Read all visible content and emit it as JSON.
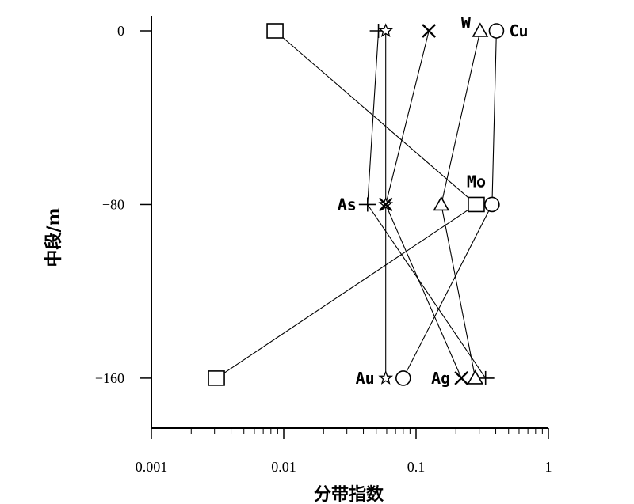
{
  "chart_data": {
    "type": "line",
    "xlabel": "分带指数",
    "ylabel": "中段/m",
    "x_scale": "log",
    "xlim": [
      0.001,
      1
    ],
    "ylim": [
      -183,
      0
    ],
    "x_ticks": [
      {
        "value": 0.001,
        "label": "0.001"
      },
      {
        "value": 0.01,
        "label": "0.01"
      },
      {
        "value": 0.1,
        "label": "0.1"
      },
      {
        "value": 1,
        "label": "1"
      }
    ],
    "y_ticks": [
      {
        "value": 0,
        "label": "0"
      },
      {
        "value": -80,
        "label": "−80"
      },
      {
        "value": -160,
        "label": "−160"
      }
    ],
    "series": [
      {
        "name": "Mo",
        "marker": "square",
        "points": [
          {
            "x": 0.0086,
            "y": 0
          },
          {
            "x": 0.285,
            "y": -80
          },
          {
            "x": 0.0031,
            "y": -160
          }
        ]
      },
      {
        "name": "As",
        "marker": "plus",
        "points": [
          {
            "x": 0.052,
            "y": 0
          },
          {
            "x": 0.043,
            "y": -80
          },
          {
            "x": 0.335,
            "y": -160
          }
        ]
      },
      {
        "name": "Au",
        "marker": "star",
        "points": [
          {
            "x": 0.059,
            "y": 0
          },
          {
            "x": 0.059,
            "y": -80
          },
          {
            "x": 0.059,
            "y": -160
          }
        ]
      },
      {
        "name": "Ag",
        "marker": "x",
        "points": [
          {
            "x": 0.125,
            "y": 0
          },
          {
            "x": 0.059,
            "y": -80
          },
          {
            "x": 0.22,
            "y": -160
          }
        ]
      },
      {
        "name": "W",
        "marker": "triangle",
        "points": [
          {
            "x": 0.305,
            "y": 0
          },
          {
            "x": 0.155,
            "y": -80
          },
          {
            "x": 0.28,
            "y": -160
          }
        ]
      },
      {
        "name": "Cu",
        "marker": "circle",
        "points": [
          {
            "x": 0.405,
            "y": 0
          },
          {
            "x": 0.375,
            "y": -80
          },
          {
            "x": 0.08,
            "y": -160
          }
        ]
      }
    ],
    "element_labels": [
      {
        "text": "Cu",
        "series": "Cu",
        "x": 0.405,
        "y": 0,
        "side": "right"
      },
      {
        "text": "W",
        "series": "W",
        "x": 0.305,
        "y": 0,
        "side": "left"
      },
      {
        "text": "Mo",
        "series": "Mo",
        "x": 0.285,
        "y": -80,
        "side": "above"
      },
      {
        "text": "As",
        "series": "As",
        "x": 0.043,
        "y": -80,
        "side": "left"
      },
      {
        "text": "Au",
        "series": "Au",
        "x": 0.059,
        "y": -160,
        "side": "left"
      },
      {
        "text": "Ag",
        "series": "Ag",
        "x": 0.22,
        "y": -160,
        "side": "left"
      }
    ]
  }
}
